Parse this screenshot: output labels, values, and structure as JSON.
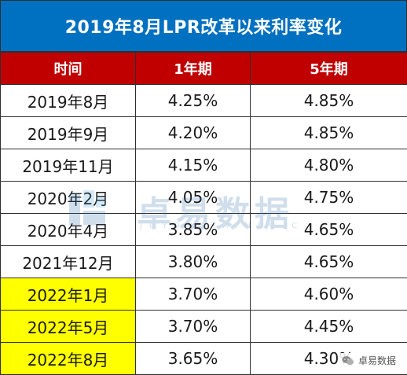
{
  "title": "2019年8月LPR改革以来利率变化",
  "table": {
    "headers": [
      "时间",
      "1年期",
      "5年期"
    ],
    "rows": [
      {
        "date": "2019年8月",
        "one_year": "4.25%",
        "five_year": "4.85%",
        "highlight": false
      },
      {
        "date": "2019年9月",
        "one_year": "4.20%",
        "five_year": "4.85%",
        "highlight": false
      },
      {
        "date": "2019年11月",
        "one_year": "4.15%",
        "five_year": "4.80%",
        "highlight": false
      },
      {
        "date": "2020年2月",
        "one_year": "4.05%",
        "five_year": "4.75%",
        "highlight": false
      },
      {
        "date": "2020年4月",
        "one_year": "3.85%",
        "five_year": "4.65%",
        "highlight": false
      },
      {
        "date": "2021年12月",
        "one_year": "3.80%",
        "five_year": "4.65%",
        "highlight": false
      },
      {
        "date": "2022年1月",
        "one_year": "3.70%",
        "five_year": "4.60%",
        "highlight": true
      },
      {
        "date": "2022年5月",
        "one_year": "3.70%",
        "five_year": "4.45%",
        "highlight": true
      },
      {
        "date": "2022年8月",
        "one_year": "3.65%",
        "five_year": "4.30%",
        "highlight": true
      }
    ]
  },
  "watermark": {
    "text": "卓易数据",
    "subtext": "JOYODATAINFO.C",
    "icon": "joyo-logo-icon"
  },
  "credit": {
    "label": "卓易数据",
    "icon": "wechat-icon"
  },
  "colors": {
    "title_bg": "#0070c0",
    "header_bg": "#c00000",
    "highlight": "#ffff00"
  }
}
